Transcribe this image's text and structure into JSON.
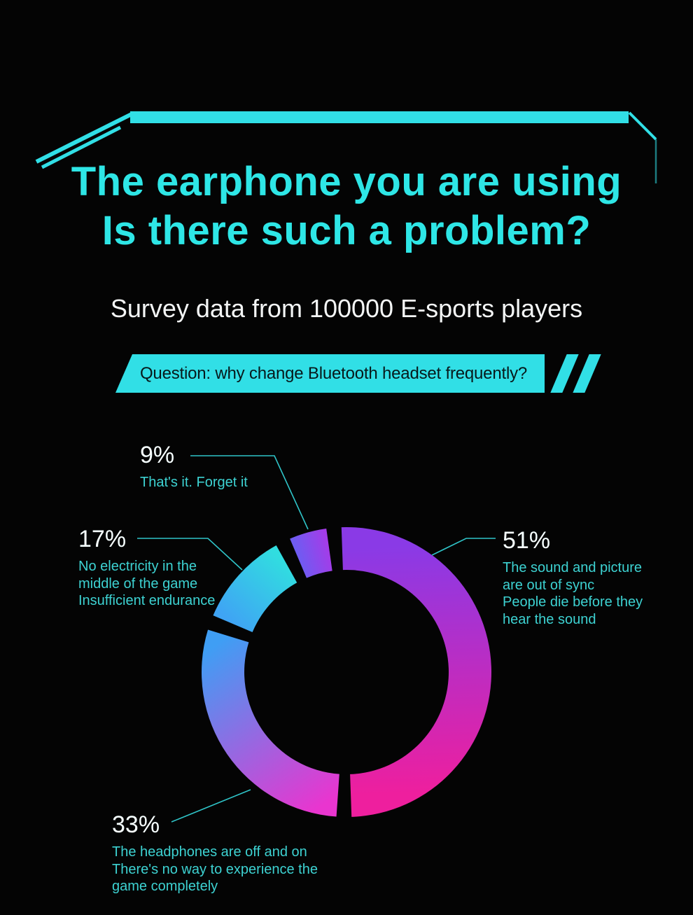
{
  "header": {
    "title_line1": "The earphone you are using",
    "title_line2": "Is there such a problem?",
    "subtitle": "Survey data from 100000 E-sports players"
  },
  "banner": {
    "text": "Question: why change Bluetooth headset frequently?"
  },
  "colors": {
    "background": "#040404",
    "accent_cyan": "#2ee6e6",
    "frame_cyan": "#31dfe6",
    "percent_text": "#f6ffff",
    "description_text": "#3dd2d2",
    "banner_background": "#31dfe6",
    "banner_text": "#07191b",
    "leader_line": "#2fc4c8"
  },
  "chart_data": {
    "type": "pie",
    "donut": true,
    "title": "Question: why change Bluetooth headset frequently?",
    "subtitle": "Survey data from 100000 E-sports players",
    "legend_position": "callout-labels",
    "inner_radius_ratio": 0.7,
    "gap_degrees": 6,
    "segments": [
      {
        "label": "9%",
        "value": 9,
        "description": "That's it. Forget it",
        "start_angle": 337,
        "end_angle": 352,
        "gradient": [
          "#6e5cf2",
          "#a43ce8"
        ]
      },
      {
        "label": "17%",
        "value": 17,
        "description": "No electricity in the\nmiddle of the game\nInsufficient endurance",
        "start_angle": 293,
        "end_angle": 331,
        "gradient": [
          "#3fa4f4",
          "#31dde0"
        ]
      },
      {
        "label": "33%",
        "value": 33,
        "description": "The headphones are off and on\nThere's no way to experience the\ngame completely",
        "start_angle": 184,
        "end_angle": 287,
        "gradient": [
          "#e935cf",
          "#3f9ef4"
        ]
      },
      {
        "label": "51%",
        "value": 51,
        "description": "The sound and picture\nare out of sync\nPeople die before they\nhear the sound",
        "start_angle": 358,
        "end_angle": 538,
        "gradient": [
          "#8a3ae6",
          "#ee1f9e"
        ]
      }
    ]
  }
}
